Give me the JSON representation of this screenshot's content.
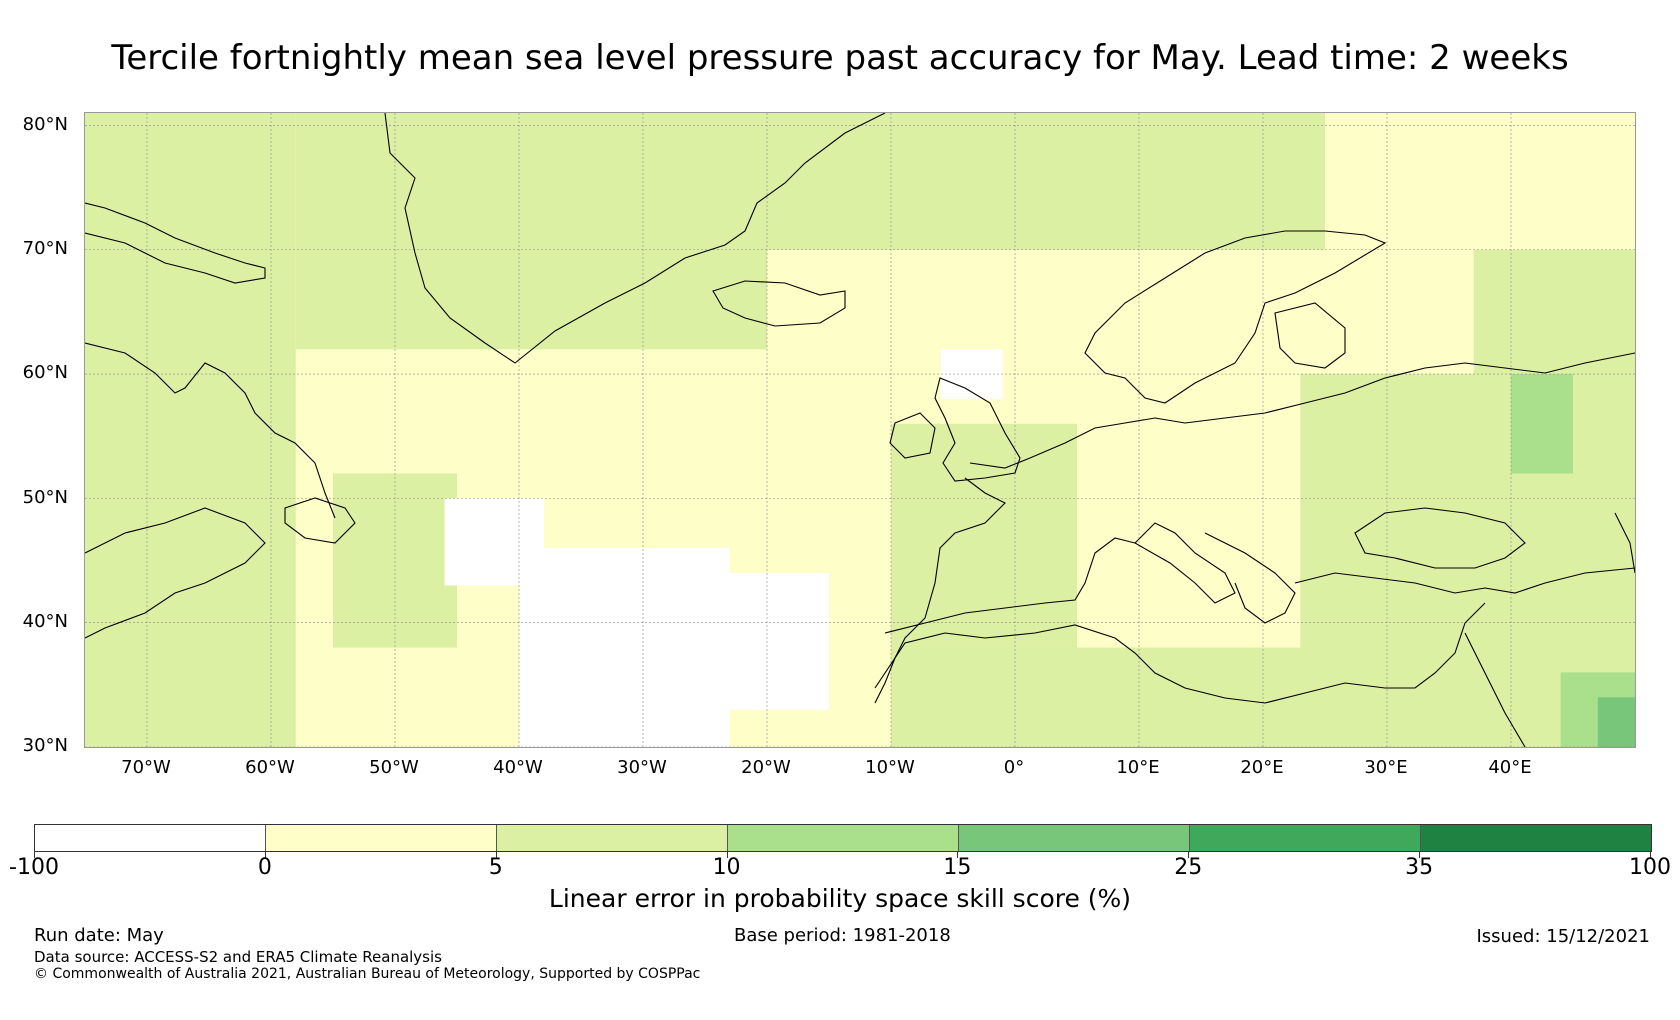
{
  "title": "Tercile fortnightly mean sea level pressure past accuracy for May. Lead time: 2 weeks",
  "map": {
    "lon_range": [
      -75,
      50
    ],
    "lat_range": [
      30,
      81
    ],
    "lat_labels": [
      "80°N",
      "70°N",
      "60°N",
      "50°N",
      "40°N",
      "30°N"
    ],
    "lat_values": [
      80,
      70,
      60,
      50,
      40,
      30
    ],
    "lon_labels": [
      "70°W",
      "60°W",
      "50°W",
      "40°W",
      "30°W",
      "20°W",
      "10°W",
      "0°",
      "10°E",
      "20°E",
      "30°E",
      "40°E"
    ],
    "lon_values": [
      -70,
      -60,
      -50,
      -40,
      -30,
      -20,
      -10,
      0,
      10,
      20,
      30,
      40
    ],
    "region_fill": [
      {
        "bin": "-100–0",
        "lon": [
          -40,
          -23
        ],
        "lat": [
          30,
          46
        ]
      },
      {
        "bin": "-100–0",
        "lon": [
          -46,
          -38
        ],
        "lat": [
          43,
          50
        ]
      },
      {
        "bin": "-100–0",
        "lon": [
          -23,
          -15
        ],
        "lat": [
          33,
          44
        ]
      },
      {
        "bin": "-100–0",
        "lon": [
          -6,
          -1
        ],
        "lat": [
          58,
          62
        ]
      },
      {
        "bin": "5–10",
        "lon": [
          -75,
          -58
        ],
        "lat": [
          30,
          81
        ]
      },
      {
        "bin": "5–10",
        "lon": [
          -58,
          -20
        ],
        "lat": [
          62,
          81
        ]
      },
      {
        "bin": "5–10",
        "lon": [
          -20,
          25
        ],
        "lat": [
          70,
          81
        ]
      },
      {
        "bin": "5–10",
        "lon": [
          -10,
          50
        ],
        "lat": [
          30,
          38
        ]
      },
      {
        "bin": "5–10",
        "lon": [
          -10,
          5
        ],
        "lat": [
          38,
          56
        ]
      },
      {
        "bin": "5–10",
        "lon": [
          23,
          50
        ],
        "lat": [
          30,
          60
        ]
      },
      {
        "bin": "5–10",
        "lon": [
          37,
          50
        ],
        "lat": [
          60,
          70
        ]
      },
      {
        "bin": "5–10",
        "lon": [
          -55,
          -45
        ],
        "lat": [
          38,
          52
        ]
      },
      {
        "bin": "10–15",
        "lon": [
          44,
          50
        ],
        "lat": [
          30,
          36
        ]
      },
      {
        "bin": "10–15",
        "lon": [
          40,
          45
        ],
        "lat": [
          52,
          60
        ]
      },
      {
        "bin": "15–25",
        "lon": [
          47,
          50
        ],
        "lat": [
          30,
          34
        ]
      }
    ]
  },
  "colorbar": {
    "bounds": [
      "-100",
      "0",
      "5",
      "10",
      "15",
      "25",
      "35",
      "100"
    ],
    "colors": [
      "#ffffff",
      "#fefec8",
      "#dcf0a4",
      "#aadf8c",
      "#78c679",
      "#3fa85a",
      "#1f8142"
    ],
    "bin_labels": [
      "-100–0",
      "0–5",
      "5–10",
      "10–15",
      "15–25",
      "25–35",
      "35–100"
    ],
    "label": "Linear error in probability space skill score (%)"
  },
  "footer": {
    "run_date": "Run date: May",
    "base_period": "Base period: 1981-2018",
    "issued": "Issued: 15/12/2021",
    "data_source": "Data source: ACCESS-S2 and ERA5 Climate Reanalysis",
    "copyright": "© Commonwealth of Australia 2021, Australian Bureau of Meteorology, Supported by COSPPac"
  },
  "colors": {
    "coastline": "#000000",
    "gridline": "#888888"
  }
}
